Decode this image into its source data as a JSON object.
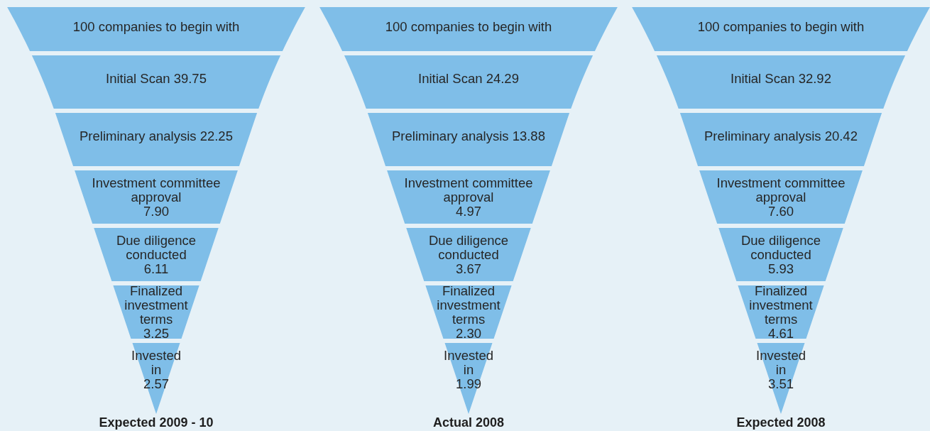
{
  "chart_data": [
    {
      "type": "other",
      "title": "Expected 2009 - 10",
      "categories": [
        "companies to begin with",
        "Initial Scan",
        "Preliminary analysis",
        "Investment committee approval",
        "Due diligence conducted",
        "Finalized investment terms",
        "Invested in"
      ],
      "values": [
        100,
        39.75,
        22.25,
        7.9,
        6.11,
        3.25,
        2.57
      ],
      "value_labels": [
        "100",
        "39.75",
        "22.25",
        "7.90",
        "6.11",
        "3.25",
        "2.57"
      ],
      "color": "#7fbee8"
    },
    {
      "type": "other",
      "title": "Actual 2008",
      "categories": [
        "companies to begin with",
        "Initial Scan",
        "Preliminary analysis",
        "Investment committee approval",
        "Due diligence conducted",
        "Finalized investment terms",
        "Invested in"
      ],
      "values": [
        100,
        24.29,
        13.88,
        4.97,
        3.67,
        2.3,
        1.99
      ],
      "value_labels": [
        "100",
        "24.29",
        "13.88",
        "4.97",
        "3.67",
        "2.30",
        "1.99"
      ],
      "color": "#7fbee8"
    },
    {
      "type": "other",
      "title": "Expected 2008",
      "categories": [
        "companies to begin with",
        "Initial Scan",
        "Preliminary analysis",
        "Investment committee approval",
        "Due diligence conducted",
        "Finalized investment terms",
        "Invested in"
      ],
      "values": [
        100,
        32.92,
        20.42,
        7.6,
        5.93,
        4.61,
        3.51
      ],
      "value_labels": [
        "100",
        "32.92",
        "20.42",
        "7.60",
        "5.93",
        "4.61",
        "3.51"
      ],
      "color": "#7fbee8"
    }
  ]
}
